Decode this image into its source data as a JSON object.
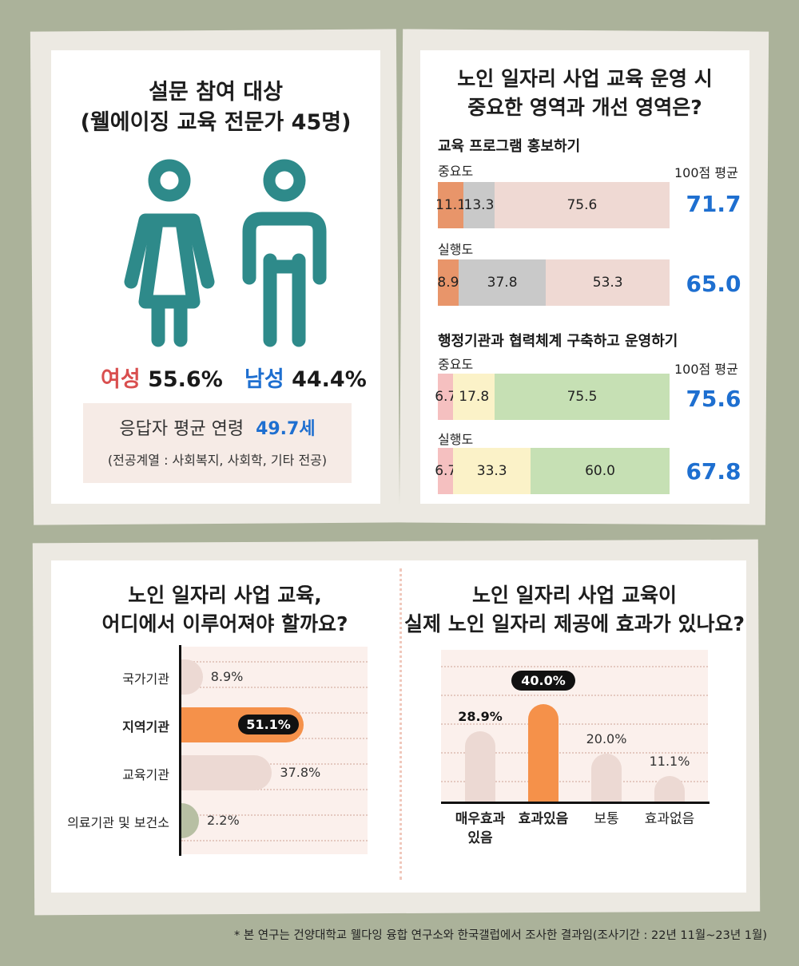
{
  "panel1": {
    "title_line1": "설문 참여 대상",
    "title_line2": "(웰에이징 교육 전문가 45명)",
    "female_label": "여성",
    "female_value": "55.6%",
    "male_label": "남성",
    "male_value": "44.4%",
    "age_label": "응답자 평균 연령",
    "age_value": "49.7세",
    "major_note": "(전공계열 : 사회복지, 사회학, 기타 전공)",
    "colors": {
      "female": "#d94f4f",
      "male": "#1e6fd0",
      "figure": "#2e8a8a"
    }
  },
  "panel2": {
    "title_line1": "노인 일자리 사업 교육 운영 시",
    "title_line2": "중요한 영역과 개선 영역은?",
    "avg_header": "100점 평균",
    "sections": [
      {
        "name": "교육 프로그램 홍보하기",
        "rows": [
          {
            "label": "중요도",
            "values": [
              11.1,
              13.3,
              75.6
            ],
            "value_labels": [
              "11.1",
              "13.3",
              "75.6"
            ],
            "avg": "71.7"
          },
          {
            "label": "실행도",
            "values": [
              8.9,
              37.8,
              53.3
            ],
            "value_labels": [
              "8.9",
              "37.8",
              "53.3"
            ],
            "avg": "65.0"
          }
        ],
        "colors": [
          "#e8956a",
          "#c9c9c9",
          "#efd9d3"
        ]
      },
      {
        "name": "행정기관과 협력체계 구축하고 운영하기",
        "rows": [
          {
            "label": "중요도",
            "values": [
              6.7,
              17.8,
              75.5
            ],
            "value_labels": [
              "6.7",
              "17.8",
              "75.5"
            ],
            "avg": "75.6"
          },
          {
            "label": "실행도",
            "values": [
              6.7,
              33.3,
              60.0
            ],
            "value_labels": [
              "6.7",
              "33.3",
              "60.0"
            ],
            "avg": "67.8"
          }
        ],
        "colors": [
          "#f5c0c0",
          "#fbf2c8",
          "#c6e0b4"
        ]
      }
    ]
  },
  "panel3": {
    "title_line1": "노인 일자리 사업 교육,",
    "title_line2": "어디에서 이루어져야 할까요?",
    "chart_data": {
      "type": "bar",
      "orientation": "horizontal",
      "categories": [
        "국가기관",
        "지역기관",
        "교육기관",
        "의료기관 및 보건소"
      ],
      "values": [
        8.9,
        51.1,
        37.8,
        2.2
      ],
      "value_labels": [
        "8.9%",
        "51.1%",
        "37.8%",
        "2.2%"
      ],
      "highlight": "지역기관",
      "colors": {
        "default": "#ecd9d3",
        "highlight": "#f5914a",
        "small": "#b7bfa3"
      }
    }
  },
  "panel4": {
    "title_line1": "노인 일자리 사업 교육이",
    "title_line2": "실제 노인 일자리 제공에 효과가 있나요?",
    "chart_data": {
      "type": "bar",
      "orientation": "vertical",
      "categories": [
        "매우효과 있음",
        "효과있음",
        "보통",
        "효과없음"
      ],
      "category_lines": [
        [
          "매우효과",
          "있음"
        ],
        [
          "효과있음"
        ],
        [
          "보통"
        ],
        [
          "효과없음"
        ]
      ],
      "values": [
        28.9,
        40.0,
        20.0,
        11.1
      ],
      "value_labels": [
        "28.9%",
        "40.0%",
        "20.0%",
        "11.1%"
      ],
      "highlight": "효과있음",
      "colors": {
        "default": "#ecd9d3",
        "highlight": "#f5914a"
      }
    }
  },
  "footnote": "* 본 연구는 건양대학교 웰다잉 융합 연구소와 한국갤럽에서 조사한 결과임(조사기간 : 22년 11월~23년 1월)"
}
